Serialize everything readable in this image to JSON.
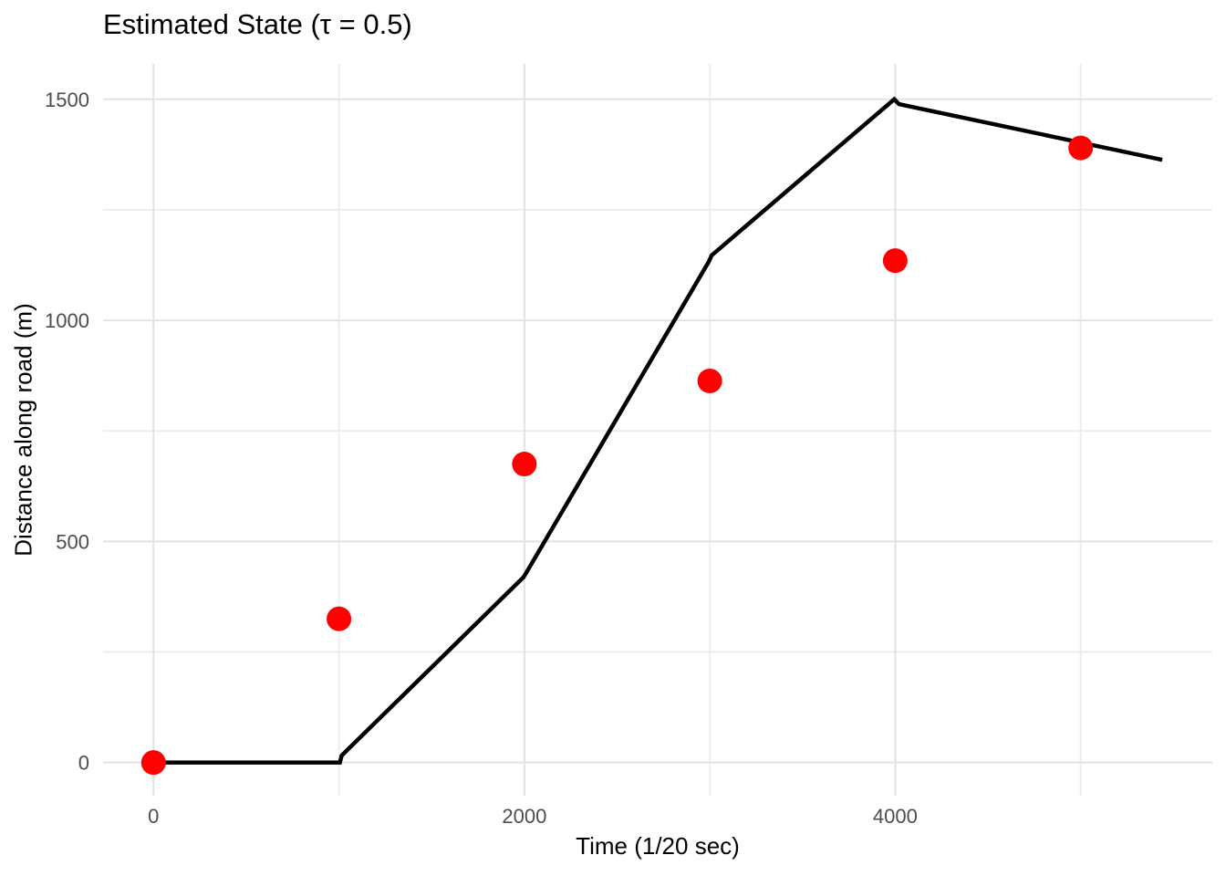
{
  "chart_data": {
    "type": "line",
    "title": "Estimated State (τ = 0.5)",
    "xlabel": "Time (1/20 sec)",
    "ylabel": "Distance along road (m)",
    "xlim": [
      -272,
      5710
    ],
    "ylim": [
      -75,
      1580
    ],
    "grid": "major+minor",
    "legend": "none",
    "x_major_ticks": [
      {
        "value": 0,
        "label": "0"
      },
      {
        "value": 2000,
        "label": "2000"
      },
      {
        "value": 4000,
        "label": "4000"
      }
    ],
    "x_minor_ticks": [
      1000,
      3000,
      5000
    ],
    "y_major_ticks": [
      {
        "value": 0,
        "label": "0"
      },
      {
        "value": 500,
        "label": "500"
      },
      {
        "value": 1000,
        "label": "1000"
      },
      {
        "value": 1500,
        "label": "1500"
      }
    ],
    "y_minor_ticks": [
      250,
      750,
      1250
    ],
    "series": [
      {
        "name": "estimated-state-line",
        "type": "line",
        "color": "#000000",
        "stroke_width": 4.5,
        "points": [
          [
            0,
            0
          ],
          [
            1005,
            0
          ],
          [
            1015,
            16
          ],
          [
            1995,
            419
          ],
          [
            2010,
            429
          ],
          [
            2995,
            1133
          ],
          [
            3010,
            1147
          ],
          [
            3995,
            1500
          ],
          [
            4020,
            1489
          ],
          [
            5440,
            1363
          ]
        ]
      },
      {
        "name": "measurements",
        "type": "scatter",
        "color": "#FF0000",
        "radius": 13.5,
        "points": [
          [
            0,
            0
          ],
          [
            1000,
            325
          ],
          [
            2000,
            675
          ],
          [
            3000,
            863
          ],
          [
            4000,
            1135
          ],
          [
            5000,
            1390
          ]
        ]
      }
    ],
    "colors": {
      "background": "#FFFFFF",
      "grid_major": "#E2E2E2",
      "grid_minor": "#EDEDED",
      "tick_label": "#4D4D4D",
      "title": "#000000",
      "axis_title": "#000000"
    }
  }
}
